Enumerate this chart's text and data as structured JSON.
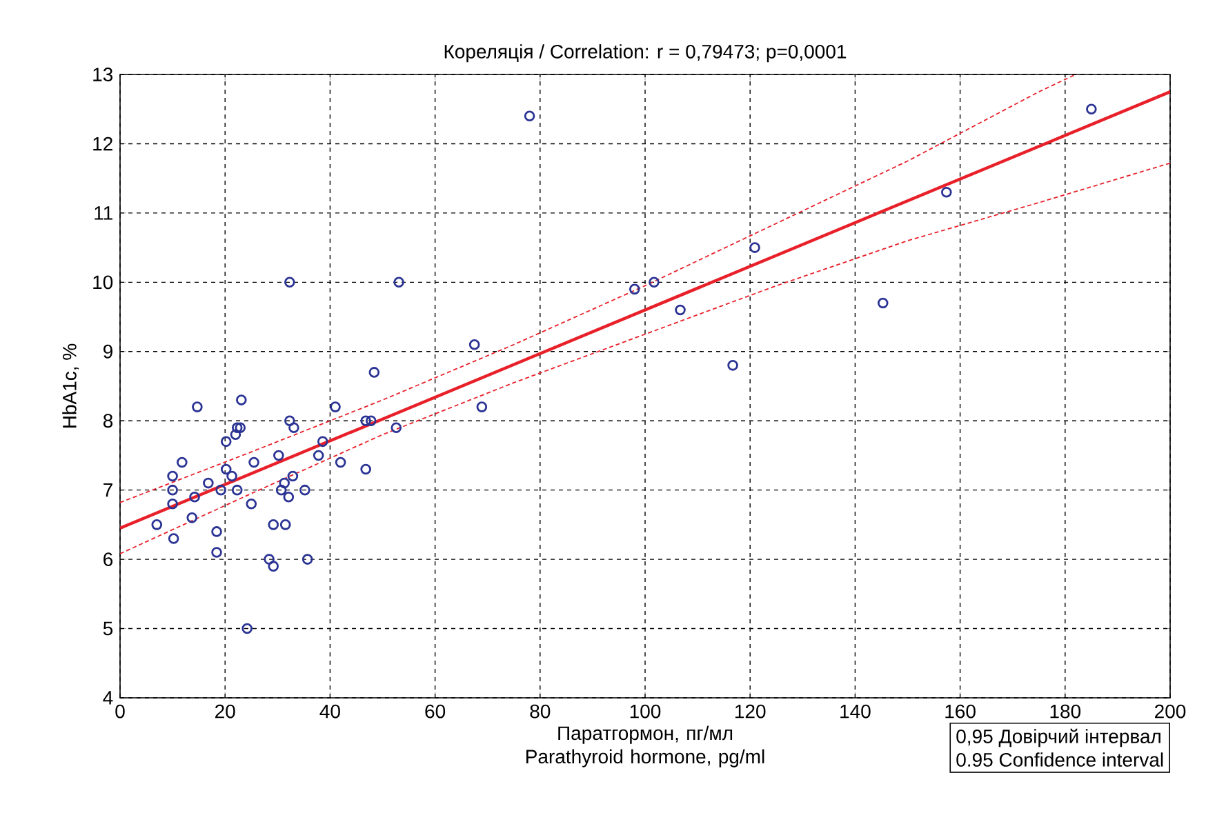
{
  "chart_data": {
    "type": "scatter",
    "title": "Кореляція / Correlation: r = 0,79473; p=0,0001",
    "xlabel": "Паратгормон, пг/мл Parathyroid hormone, pg/ml",
    "ylabel": "HbA1c, %",
    "xlim": [
      0,
      200
    ],
    "xticks": [
      0,
      20,
      40,
      60,
      80,
      100,
      120,
      140,
      160,
      180,
      200
    ],
    "ylim": [
      4,
      13
    ],
    "yticks": [
      4,
      5,
      6,
      7,
      8,
      9,
      10,
      11,
      12,
      13
    ],
    "grid": true,
    "series": [
      {
        "color": "#2b3494",
        "marker": "circle",
        "x": [
          7,
          10,
          10,
          10,
          10.2,
          11.8,
          13.7,
          14.2,
          14.7,
          16.8,
          18.4,
          18.4,
          19.2,
          20.2,
          20.2,
          21.3,
          22,
          22.3,
          22.9,
          22.3,
          23.1,
          24.2,
          25,
          25.5,
          28.4,
          29.2,
          29.2,
          30.2,
          30.7,
          31.3,
          31.5,
          32.1,
          32.3,
          32.3,
          32.9,
          33.1,
          35.2,
          35.7,
          37.8,
          38.6,
          41,
          42,
          46.8,
          46.8,
          47.8,
          48.4,
          52.6,
          53.1,
          67.5,
          68.9,
          78,
          98,
          101.7,
          106.7,
          116.7,
          120.9,
          145.3,
          157.4,
          185
        ],
        "values": [
          6.5,
          7.2,
          7.0,
          6.8,
          6.3,
          7.4,
          6.6,
          6.9,
          8.2,
          7.1,
          6.4,
          6.1,
          7.0,
          7.7,
          7.3,
          7.2,
          7.8,
          7.9,
          7.9,
          7.0,
          8.3,
          5.0,
          6.8,
          7.4,
          6.0,
          5.9,
          6.5,
          7.5,
          7.0,
          7.1,
          6.5,
          6.9,
          10.0,
          8.0,
          7.2,
          7.9,
          7.0,
          6.0,
          7.5,
          7.7,
          8.2,
          7.4,
          8.0,
          7.3,
          8.0,
          8.7,
          7.9,
          10.0,
          9.1,
          8.2,
          12.4,
          9.9,
          10.0,
          9.6,
          8.8,
          10.5,
          9.7,
          11.3,
          12.5
        ]
      },
      {
        "type": "line",
        "color": "#e8202a",
        "line_style": "solid",
        "marker": "none",
        "x": [
          0,
          200
        ],
        "values": [
          6.45,
          12.75
        ]
      },
      {
        "type": "line",
        "color": "#e8202a",
        "line_style": "dashed",
        "marker": "none",
        "x": [
          0,
          25,
          50,
          75,
          100,
          125,
          150,
          175,
          182
        ],
        "values": [
          6.82,
          7.55,
          8.3,
          9.1,
          9.95,
          10.85,
          11.75,
          12.75,
          13.0
        ]
      },
      {
        "type": "line",
        "color": "#e8202a",
        "line_style": "dashed",
        "marker": "none",
        "x": [
          0,
          25,
          50,
          75,
          100,
          125,
          150,
          175,
          200
        ],
        "values": [
          6.08,
          6.95,
          7.8,
          8.55,
          9.25,
          9.95,
          10.6,
          11.15,
          11.72
        ]
      }
    ],
    "annotations": [
      "0,95 Довірчий інтервал",
      "0.95 Confidence interval"
    ]
  }
}
